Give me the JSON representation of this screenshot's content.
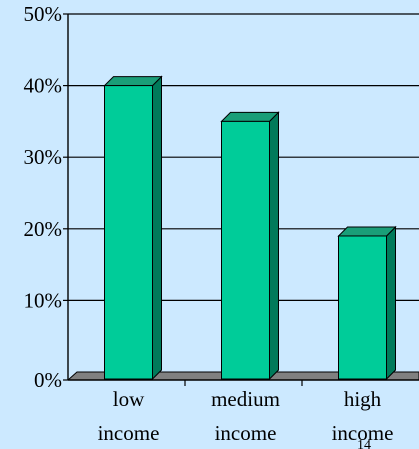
{
  "chart_data": {
    "type": "bar",
    "categories": [
      "low income",
      "medium income",
      "high income"
    ],
    "category_lines": [
      [
        "low",
        "income"
      ],
      [
        "medium",
        "income"
      ],
      [
        "high",
        "income"
      ]
    ],
    "values": [
      0.4,
      0.35,
      0.19
    ],
    "value_unit": "fraction",
    "ylim": [
      0,
      0.5
    ],
    "y_ticks": [
      0,
      0.1,
      0.2,
      0.3,
      0.4,
      0.5
    ],
    "y_tick_labels": [
      "0%",
      "10%",
      "20%",
      "30%",
      "40%",
      "50%"
    ],
    "title": "",
    "xlabel": "",
    "ylabel": "",
    "grid": "horizontal",
    "bar_style": "3d",
    "legend": "none"
  },
  "colors": {
    "background": "#cce9ff",
    "bar_front": "#00cc99",
    "bar_top": "#1a9e78",
    "bar_side": "#007a5a",
    "floor": "#808080",
    "grid": "#000000"
  },
  "page_number": "14"
}
